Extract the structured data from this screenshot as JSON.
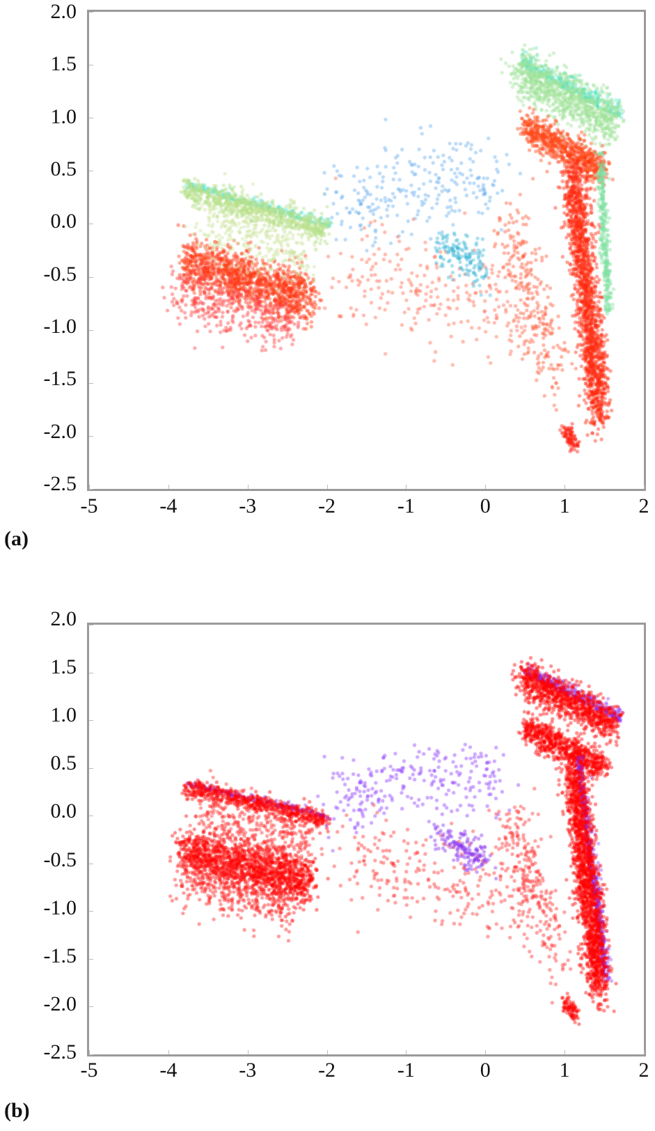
{
  "figure": {
    "panels": [
      {
        "id": "a",
        "label": "(a)"
      },
      {
        "id": "b",
        "label": "(b)"
      }
    ]
  },
  "chart_data": [
    {
      "type": "scatter",
      "panel": "(a)",
      "title": "",
      "xlabel": "",
      "ylabel": "",
      "xlim": [
        -5,
        2
      ],
      "ylim": [
        -2.5,
        2.0
      ],
      "xticks": [
        "-5",
        "-4",
        "-3",
        "-2",
        "-1",
        "0",
        "1",
        "2"
      ],
      "yticks": [
        "2.0",
        "1.5",
        "1.0",
        "0.5",
        "0.0",
        "-0.5",
        "-1.0",
        "-1.5",
        "-2.0",
        "-2.5"
      ],
      "grid": false,
      "legend": null,
      "colormap": "rainbow (red / orange / yellow-green / green / cyan / blue / violet)",
      "clusters": [
        {
          "name": "upper-right band",
          "color": "#9fe39a",
          "x": [
            0.4,
            1.65
          ],
          "y": [
            1.45,
            0.95
          ],
          "width": 0.12,
          "n": 900,
          "edge": "#40e0c0"
        },
        {
          "name": "upper-right inner band",
          "color": "#ff4a1a",
          "x": [
            0.5,
            1.5
          ],
          "y": [
            0.92,
            0.5
          ],
          "width": 0.08,
          "n": 700
        },
        {
          "name": "right vertical column",
          "color": "#ff2a10",
          "x": [
            1.1,
            1.45
          ],
          "y": [
            0.5,
            -1.8
          ],
          "width": 0.13,
          "n": 1600
        },
        {
          "name": "right column green edge",
          "color": "#7ee0a0",
          "x": [
            1.45,
            1.55
          ],
          "y": [
            0.6,
            -0.8
          ],
          "width": 0.05,
          "n": 300
        },
        {
          "name": "right bottom blob",
          "color": "#ff1a0a",
          "x": [
            1.0,
            1.15
          ],
          "y": [
            -1.95,
            -2.1
          ],
          "width": 0.05,
          "n": 80
        },
        {
          "name": "left upper band",
          "color": "#b6e08a",
          "x": [
            -3.8,
            -2.0
          ],
          "y": [
            0.32,
            -0.05
          ],
          "width": 0.06,
          "n": 700,
          "edge": "#48e0c8"
        },
        {
          "name": "left lower band",
          "color": "#ff3a14",
          "x": [
            -3.8,
            -2.2
          ],
          "y": [
            -0.35,
            -0.7
          ],
          "width": 0.12,
          "n": 1200
        },
        {
          "name": "left lower sparse",
          "color": "#ff4040",
          "x": [
            -3.9,
            -2.4
          ],
          "y": [
            -0.6,
            -0.95
          ],
          "width": 0.15,
          "n": 400
        },
        {
          "name": "left middle yellow-green fill",
          "color": "#cfe4a0",
          "x": [
            -3.6,
            -2.2
          ],
          "y": [
            0.05,
            -0.3
          ],
          "width": 0.15,
          "n": 300
        },
        {
          "name": "middle sparse cool",
          "color": "#6ab0f0",
          "x": [
            -1.9,
            0.2
          ],
          "y": [
            0.2,
            0.45
          ],
          "width": 0.2,
          "n": 250
        },
        {
          "name": "middle sparse warm",
          "color": "#ff6a50",
          "x": [
            -1.8,
            0.6
          ],
          "y": [
            -0.45,
            -0.85
          ],
          "width": 0.25,
          "n": 250
        },
        {
          "name": "central cool blob",
          "color": "#40b8d8",
          "x": [
            -0.6,
            0.0
          ],
          "y": [
            -0.2,
            -0.45
          ],
          "width": 0.1,
          "n": 150
        },
        {
          "name": "central warm column",
          "color": "#ff5a3a",
          "x": [
            0.3,
            0.9
          ],
          "y": [
            0.0,
            -1.5
          ],
          "width": 0.2,
          "n": 250
        }
      ]
    },
    {
      "type": "scatter",
      "panel": "(b)",
      "title": "",
      "xlabel": "",
      "ylabel": "",
      "xlim": [
        -5,
        2
      ],
      "ylim": [
        -2.5,
        2.0
      ],
      "xticks": [
        "-5",
        "-4",
        "-3",
        "-2",
        "-1",
        "0",
        "1",
        "2"
      ],
      "yticks": [
        "2.0",
        "1.5",
        "1.0",
        "0.5",
        "0.0",
        "-0.5",
        "-1.0",
        "-1.5",
        "-2.0",
        "-2.5"
      ],
      "grid": false,
      "legend": null,
      "series_colors": {
        "class_1": "#ff0000",
        "class_2": "#7f1fff"
      },
      "clusters": [
        {
          "name": "upper-right band",
          "color": "#ff0000",
          "x": [
            0.45,
            1.65
          ],
          "y": [
            1.45,
            0.95
          ],
          "width": 0.1,
          "n": 900,
          "edge": "#7f1fff"
        },
        {
          "name": "upper-right inner band",
          "color": "#ff0000",
          "x": [
            0.5,
            1.5
          ],
          "y": [
            0.92,
            0.5
          ],
          "width": 0.08,
          "n": 700
        },
        {
          "name": "right vertical column",
          "color": "#ff0000",
          "x": [
            1.1,
            1.45
          ],
          "y": [
            0.5,
            -1.8
          ],
          "width": 0.13,
          "n": 1700,
          "edge": "#7f1fff"
        },
        {
          "name": "right bottom blob",
          "color": "#ff0000",
          "x": [
            1.0,
            1.15
          ],
          "y": [
            -1.95,
            -2.1
          ],
          "width": 0.05,
          "n": 80
        },
        {
          "name": "left upper band",
          "color": "#ff0000",
          "x": [
            -3.8,
            -2.0
          ],
          "y": [
            0.3,
            -0.05
          ],
          "width": 0.05,
          "n": 600,
          "edge": "#7f1fff"
        },
        {
          "name": "left lower band",
          "color": "#ff0000",
          "x": [
            -3.8,
            -2.2
          ],
          "y": [
            -0.35,
            -0.7
          ],
          "width": 0.13,
          "n": 1400
        },
        {
          "name": "left lower sparse",
          "color": "#ff2020",
          "x": [
            -3.9,
            -2.4
          ],
          "y": [
            -0.6,
            -0.95
          ],
          "width": 0.15,
          "n": 400
        },
        {
          "name": "left middle fill",
          "color": "#ff3030",
          "x": [
            -3.6,
            -2.2
          ],
          "y": [
            0.05,
            -0.3
          ],
          "width": 0.15,
          "n": 350
        },
        {
          "name": "middle sparse violet",
          "color": "#9040ff",
          "x": [
            -1.9,
            0.2
          ],
          "y": [
            0.2,
            0.45
          ],
          "width": 0.2,
          "n": 250
        },
        {
          "name": "middle sparse red",
          "color": "#ff3030",
          "x": [
            -1.8,
            0.6
          ],
          "y": [
            -0.45,
            -0.85
          ],
          "width": 0.25,
          "n": 250
        },
        {
          "name": "central violet blob",
          "color": "#8a30f0",
          "x": [
            -0.6,
            0.0
          ],
          "y": [
            -0.2,
            -0.45
          ],
          "width": 0.1,
          "n": 150
        },
        {
          "name": "central red column",
          "color": "#ff3030",
          "x": [
            0.3,
            0.9
          ],
          "y": [
            0.0,
            -1.5
          ],
          "width": 0.2,
          "n": 250
        }
      ]
    }
  ]
}
